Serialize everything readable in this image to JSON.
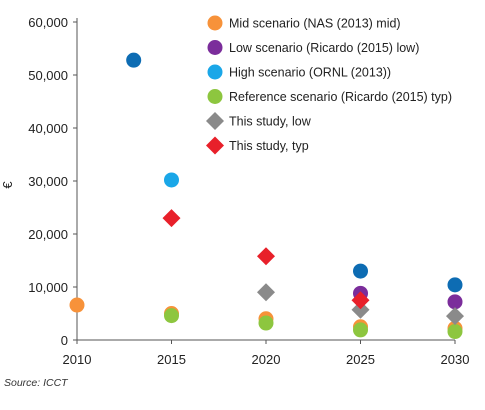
{
  "chart_data": {
    "type": "scatter",
    "ylabel": "€",
    "xlim": [
      2010,
      2030
    ],
    "ylim": [
      0,
      60000
    ],
    "x_ticks": [
      "2010",
      "2015",
      "2020",
      "2025",
      "2030"
    ],
    "y_ticks": [
      "0",
      "10,000",
      "20,000",
      "30,000",
      "40,000",
      "50,000",
      "60,000"
    ],
    "grid": false,
    "legend_position": "top-right",
    "series": [
      {
        "name": "Mid scenario (NAS (2013) mid)",
        "color": "#f7923a",
        "marker": "circle",
        "points": [
          {
            "x": 2010,
            "y": 6600
          },
          {
            "x": 2015,
            "y": 5000
          },
          {
            "x": 2020,
            "y": 4000
          },
          {
            "x": 2025,
            "y": 2500
          },
          {
            "x": 2030,
            "y": 2200
          }
        ]
      },
      {
        "name": "Low scenario (Ricardo (2015) low)",
        "color": "#7b2d9b",
        "marker": "circle",
        "points": [
          {
            "x": 2025,
            "y": 8800
          },
          {
            "x": 2030,
            "y": 7200
          }
        ]
      },
      {
        "name": "High scenario (ORNL (2013))",
        "color": "#1aa7e8",
        "marker": "circle",
        "points": [
          {
            "x": 2015,
            "y": 30200
          }
        ]
      },
      {
        "name": "Reference scenario (Ricardo (2015) typ)",
        "color": "#8dc63f",
        "marker": "circle",
        "points": [
          {
            "x": 2015,
            "y": 4600
          },
          {
            "x": 2020,
            "y": 3200
          },
          {
            "x": 2025,
            "y": 1900
          },
          {
            "x": 2030,
            "y": 1600
          }
        ]
      },
      {
        "name": "This study, low",
        "color": "#8a8a8a",
        "marker": "diamond",
        "points": [
          {
            "x": 2020,
            "y": 9000
          },
          {
            "x": 2025,
            "y": 5700
          },
          {
            "x": 2030,
            "y": 4500
          }
        ]
      },
      {
        "name": "This study, typ",
        "color": "#e8202a",
        "marker": "diamond",
        "points": [
          {
            "x": 2015,
            "y": 23000
          },
          {
            "x": 2020,
            "y": 15800
          },
          {
            "x": 2025,
            "y": 7500
          }
        ]
      },
      {
        "name": "",
        "color": "#0d6cb3",
        "marker": "circle",
        "points": [
          {
            "x": 2013,
            "y": 52800
          },
          {
            "x": 2025,
            "y": 13000
          },
          {
            "x": 2030,
            "y": 10400
          }
        ]
      }
    ]
  },
  "source": "Source: ICCT"
}
